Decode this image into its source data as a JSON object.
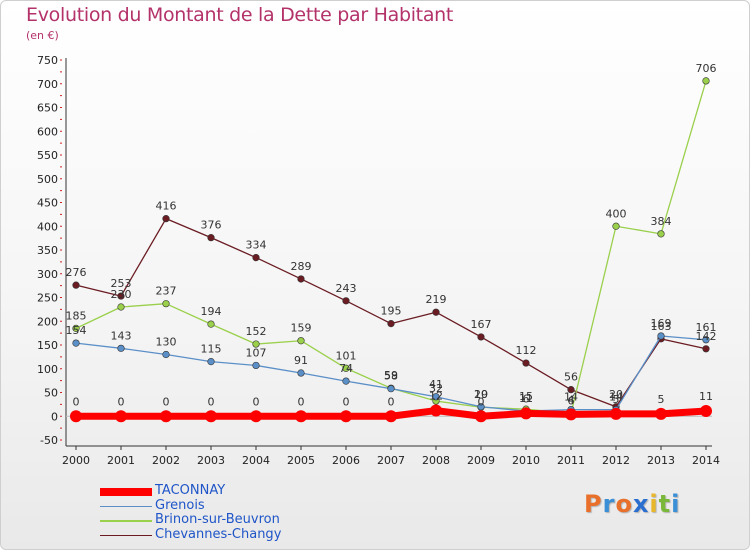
{
  "header": {
    "title": "Evolution du Montant de la Dette par Habitant",
    "unit": "(en €)"
  },
  "brand": {
    "letters": [
      "P",
      "r",
      "o",
      "x",
      "i",
      "t",
      "i"
    ],
    "colors": [
      "#e8702a",
      "#3a8fd6",
      "#e8702a",
      "#2a6fd0",
      "#e8b72a",
      "#7ab83a",
      "#3a8fd6"
    ]
  },
  "chart_data": {
    "type": "line",
    "x": [
      "2000",
      "2001",
      "2002",
      "2003",
      "2004",
      "2005",
      "2006",
      "2007",
      "2008",
      "2009",
      "2010",
      "2011",
      "2012",
      "2013",
      "2014"
    ],
    "ylim": [
      -50,
      750
    ],
    "yticks": [
      "-50",
      "0",
      "50",
      "100",
      "150",
      "200",
      "250",
      "300",
      "350",
      "400",
      "450",
      "500",
      "550",
      "600",
      "650",
      "700",
      "750"
    ],
    "grid": false,
    "legend_position": "bottom-left",
    "series": [
      {
        "name": "TACONNAY",
        "color": "#ff0000",
        "values": [
          0,
          0,
          0,
          0,
          0,
          0,
          0,
          0,
          12,
          0,
          6,
          4,
          5,
          5,
          11
        ],
        "labels": [
          "0",
          "0",
          "0",
          "0",
          "0",
          "0",
          "0",
          "0",
          "12",
          "0",
          "6",
          "4",
          "5",
          "5",
          "11"
        ]
      },
      {
        "name": "Grenois",
        "color": "#5b8fc8",
        "values": [
          154,
          143,
          130,
          115,
          107,
          91,
          74,
          58,
          41,
          20,
          11,
          14,
          14,
          169,
          161
        ],
        "labels": [
          "154",
          "143",
          "130",
          "115",
          "107",
          "91",
          "74",
          "58",
          "41",
          "20",
          "11",
          "14",
          "14",
          "169",
          "161"
        ]
      },
      {
        "name": "Brinon-sur-Beuvron",
        "color": "#9ad04b",
        "values": [
          185,
          230,
          237,
          194,
          152,
          159,
          101,
          59,
          32,
          19,
          15,
          6,
          400,
          384,
          706
        ],
        "labels": [
          "185",
          "230",
          "237",
          "194",
          "152",
          "159",
          "101",
          "59",
          "32",
          "19",
          "15",
          "6",
          "400",
          "384",
          "706"
        ]
      },
      {
        "name": "Chevannes-Changy",
        "color": "#6b1c23",
        "values": [
          276,
          253,
          416,
          376,
          334,
          289,
          243,
          195,
          219,
          167,
          112,
          56,
          20,
          163,
          142
        ],
        "labels": [
          "276",
          "253",
          "416",
          "376",
          "334",
          "289",
          "243",
          "195",
          "219",
          "167",
          "112",
          "56",
          "20",
          "163",
          "142"
        ]
      }
    ]
  }
}
